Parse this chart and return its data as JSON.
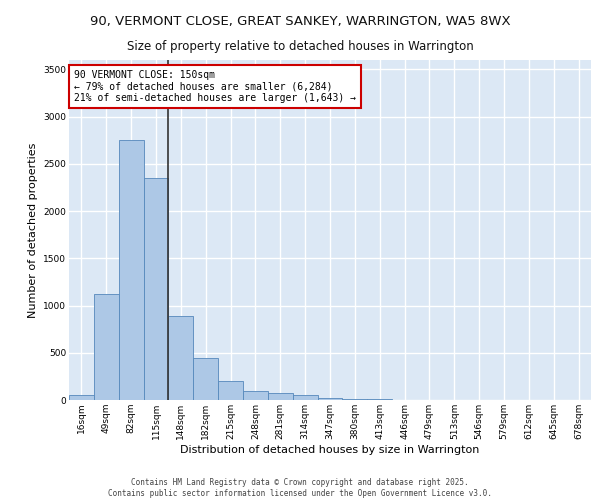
{
  "title_line1": "90, VERMONT CLOSE, GREAT SANKEY, WARRINGTON, WA5 8WX",
  "title_line2": "Size of property relative to detached houses in Warrington",
  "xlabel": "Distribution of detached houses by size in Warrington",
  "ylabel": "Number of detached properties",
  "categories": [
    "16sqm",
    "49sqm",
    "82sqm",
    "115sqm",
    "148sqm",
    "182sqm",
    "215sqm",
    "248sqm",
    "281sqm",
    "314sqm",
    "347sqm",
    "380sqm",
    "413sqm",
    "446sqm",
    "479sqm",
    "513sqm",
    "546sqm",
    "579sqm",
    "612sqm",
    "645sqm",
    "678sqm"
  ],
  "values": [
    50,
    1120,
    2750,
    2350,
    890,
    445,
    205,
    100,
    70,
    48,
    25,
    15,
    8,
    4,
    2,
    1,
    0,
    0,
    0,
    0,
    0
  ],
  "bar_color": "#adc8e6",
  "bar_edge_color": "#5588bb",
  "vline_color": "#333333",
  "vline_x_index": 3.5,
  "annotation_text": "90 VERMONT CLOSE: 150sqm\n← 79% of detached houses are smaller (6,284)\n21% of semi-detached houses are larger (1,643) →",
  "annotation_box_color": "#cc0000",
  "ylim": [
    0,
    3600
  ],
  "yticks": [
    0,
    500,
    1000,
    1500,
    2000,
    2500,
    3000,
    3500
  ],
  "footer_line1": "Contains HM Land Registry data © Crown copyright and database right 2025.",
  "footer_line2": "Contains public sector information licensed under the Open Government Licence v3.0.",
  "fig_background_color": "#ffffff",
  "plot_background_color": "#dce8f5",
  "grid_color": "#ffffff",
  "title_fontsize": 9.5,
  "subtitle_fontsize": 8.5,
  "ylabel_fontsize": 8,
  "xlabel_fontsize": 8,
  "tick_fontsize": 6.5,
  "annotation_fontsize": 7,
  "footer_fontsize": 5.5
}
